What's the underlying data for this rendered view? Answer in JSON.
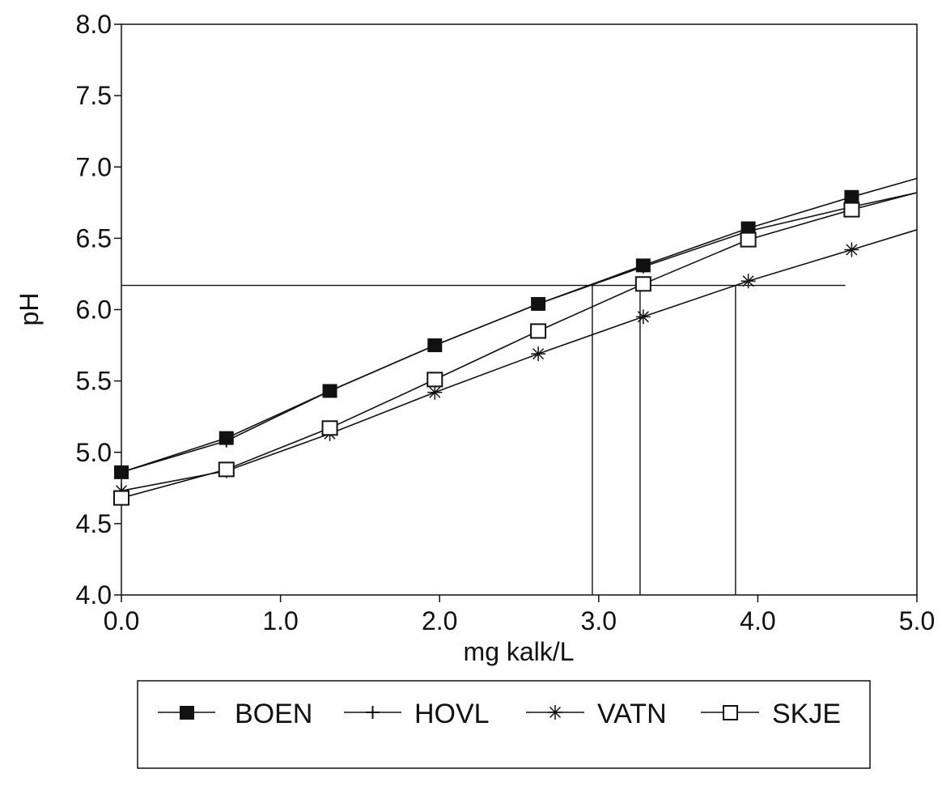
{
  "chart_data": {
    "type": "line",
    "xlabel": "mg kalk/L",
    "ylabel": "pH",
    "xlim": [
      0.0,
      5.0
    ],
    "ylim": [
      4.0,
      8.0
    ],
    "x_ticks": [
      "0.0",
      "1.0",
      "2.0",
      "3.0",
      "4.0",
      "5.0"
    ],
    "y_ticks": [
      "4.0",
      "4.5",
      "5.0",
      "5.5",
      "6.0",
      "6.5",
      "7.0",
      "7.5",
      "8.0"
    ],
    "grid": false,
    "legend_position": "bottom",
    "series": [
      {
        "name": "BOEN",
        "marker": "filled-square",
        "x": [
          0.0,
          0.66,
          1.31,
          1.97,
          2.62,
          3.28,
          3.94,
          4.59
        ],
        "y": [
          4.86,
          5.1,
          5.43,
          5.75,
          6.04,
          6.31,
          6.57,
          6.79
        ],
        "line_end": {
          "x": 5.0,
          "y": 6.92
        }
      },
      {
        "name": "HOVL",
        "marker": "plus",
        "x": [
          0.0,
          0.66,
          1.31,
          1.97,
          2.62,
          3.28,
          3.94,
          4.59
        ],
        "y": [
          4.86,
          5.08,
          5.43,
          5.75,
          6.04,
          6.3,
          6.55,
          6.72
        ],
        "line_end": {
          "x": 5.0,
          "y": 6.82
        }
      },
      {
        "name": "VATN",
        "marker": "asterisk",
        "x": [
          0.0,
          0.66,
          1.31,
          1.97,
          2.62,
          3.28,
          3.94,
          4.59
        ],
        "y": [
          4.73,
          4.87,
          5.13,
          5.42,
          5.69,
          5.95,
          6.2,
          6.42
        ],
        "line_end": {
          "x": 5.0,
          "y": 6.56
        }
      },
      {
        "name": "SKJE",
        "marker": "open-square",
        "x": [
          0.0,
          0.66,
          1.31,
          1.97,
          2.62,
          3.28,
          3.94,
          4.59
        ],
        "y": [
          4.68,
          4.88,
          5.17,
          5.51,
          5.85,
          6.18,
          6.49,
          6.7
        ],
        "line_end": {
          "x": 5.0,
          "y": 6.82
        }
      }
    ],
    "reference_lines": {
      "horizontal": {
        "y": 6.17,
        "x_from": 0.0,
        "x_to": 4.55
      },
      "vertical": [
        {
          "x": 2.96,
          "y_from": 4.0,
          "y_to": 6.17
        },
        {
          "x": 3.26,
          "y_from": 4.0,
          "y_to": 6.17
        },
        {
          "x": 3.86,
          "y_from": 4.0,
          "y_to": 6.17
        }
      ]
    }
  }
}
